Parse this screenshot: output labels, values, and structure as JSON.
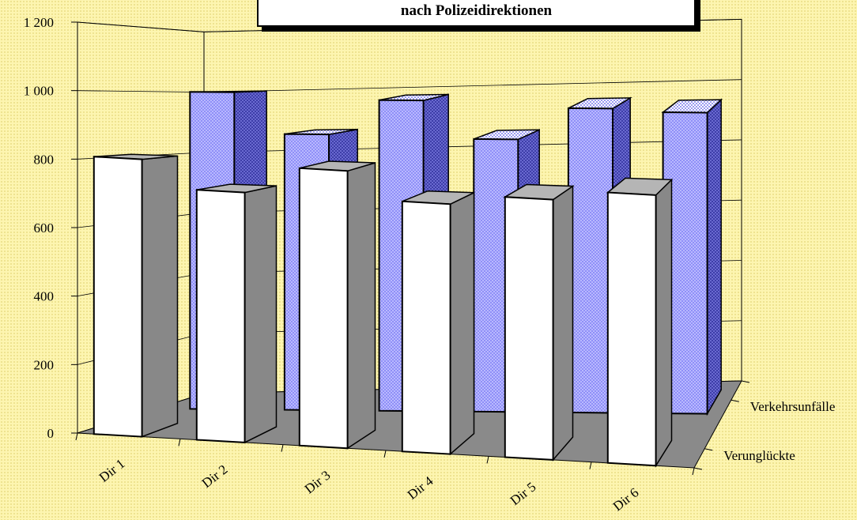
{
  "chart_data": {
    "type": "bar",
    "title": "nach Polizeidirektionen",
    "categories": [
      "Dir 1",
      "Dir 2",
      "Dir 3",
      "Dir 4",
      "Dir 5",
      "Dir 6"
    ],
    "series": [
      {
        "name": "Verunglückte",
        "values": [
          810,
          730,
          810,
          730,
          760,
          790
        ]
      },
      {
        "name": "Verkehrsunfälle",
        "values": [
          1000,
          870,
          980,
          860,
          960,
          950
        ]
      }
    ],
    "yticks": [
      "0",
      "200",
      "400",
      "600",
      "800",
      "1 000",
      "1 200"
    ],
    "ylim": [
      0,
      1200
    ],
    "grid": true,
    "colors": {
      "front_bar": "#ffffff",
      "front_side": "#888888",
      "front_top": "#b5b5b5",
      "back_bar": "#8f8ff7",
      "back_side": "#3d3da8",
      "back_top": "#b7b7f2",
      "floor": "#8a8a8a"
    }
  }
}
